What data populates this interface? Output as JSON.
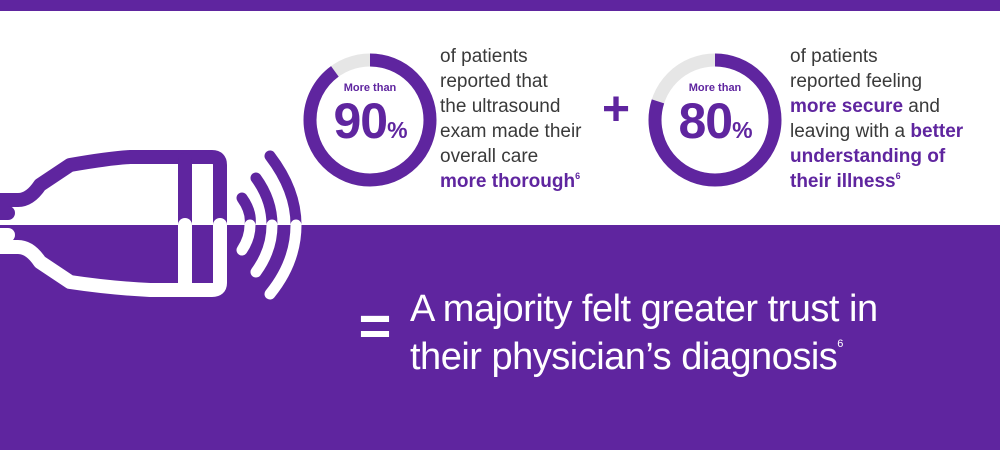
{
  "colors": {
    "brand_purple": "#5f259f",
    "ring_track": "#e6e6e6",
    "white": "#ffffff"
  },
  "stats": [
    {
      "caption": "More than",
      "value": "90",
      "unit": "%",
      "ring_fill_fraction": 0.9,
      "line1": "of patients",
      "line2": "reported that",
      "line3": "the ultrasound",
      "line4": "exam made their",
      "line5": "overall care",
      "highlight": "more thorough",
      "superscript": "6"
    },
    {
      "caption": "More than",
      "value": "80",
      "unit": "%",
      "ring_fill_fraction": 0.8,
      "line1": "of patients",
      "line2": "reported feeling",
      "highlight1": "more secure",
      "connector": " and",
      "line4_start": "leaving with a ",
      "highlight2_part1": "better",
      "highlight2_part2": "understanding of",
      "highlight2_part3": "their illness",
      "superscript": "6"
    }
  ],
  "operators": {
    "plus": "+",
    "equals": "="
  },
  "conclusion": {
    "line1": "A majority felt greater trust in",
    "line2": "their physician’s diagnosis",
    "superscript": "6"
  },
  "icons": {
    "probe": "ultrasound-probe-icon"
  }
}
